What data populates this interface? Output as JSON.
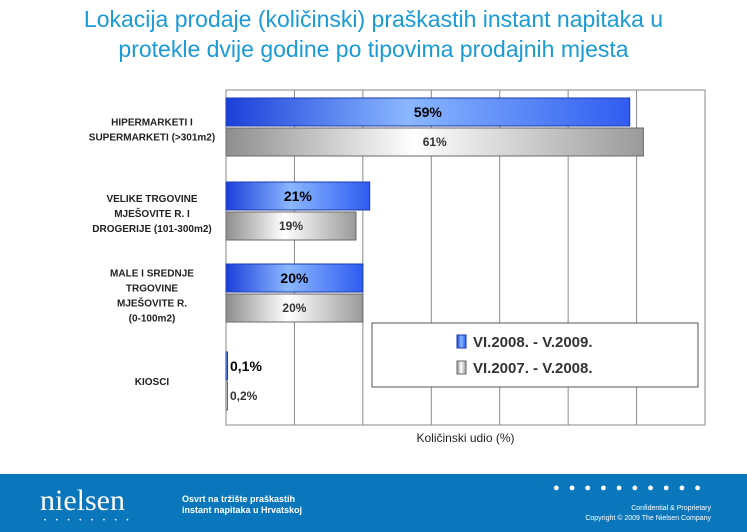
{
  "title_lines": [
    "Lokacija prodaje (količinski) praškastih instant napitaka u",
    "protekle dvije godine po tipovima prodajnih mjesta"
  ],
  "chart_data": {
    "type": "bar",
    "orientation": "horizontal",
    "xlabel": "Količinski udio (%)",
    "xlim": [
      0,
      70
    ],
    "grid": true,
    "legend_position": "bottom-right",
    "categories": [
      [
        "HIPERMARKETI I",
        "SUPERMARKETI (>301m2)"
      ],
      [
        "VELIKE TRGOVINE",
        "MJEŠOVITE R. I",
        "DROGERIJE (101-300m2)"
      ],
      [
        "MALE I SREDNJE",
        "TRGOVINE",
        "MJEŠOVITE R.",
        "(0-100m2)"
      ],
      [
        "KIOSCI"
      ]
    ],
    "series": [
      {
        "name": "VI.2008. - V.2009.",
        "values": [
          59,
          21,
          20,
          0.1
        ],
        "labels": [
          "59%",
          "21%",
          "20%",
          "0,1%"
        ],
        "color": "#3366ff"
      },
      {
        "name": "VI.2007. - V.2008.",
        "values": [
          61,
          19,
          20,
          0.2
        ],
        "labels": [
          "61%",
          "19%",
          "20%",
          "0,2%"
        ],
        "color": "#b5b5b5"
      }
    ]
  },
  "footer": {
    "logo": "nielsen",
    "logo_dots": "• • • • • • • •",
    "doc_title": "Osvrt na tržište praškastih instant napitaka u Hrvatskoj",
    "dots": "● ● ● ● ● ● ● ● ● ●",
    "confidential": "Confidential & Proprietary",
    "copyright": "Copyright © 2009 The Nielsen Company"
  }
}
